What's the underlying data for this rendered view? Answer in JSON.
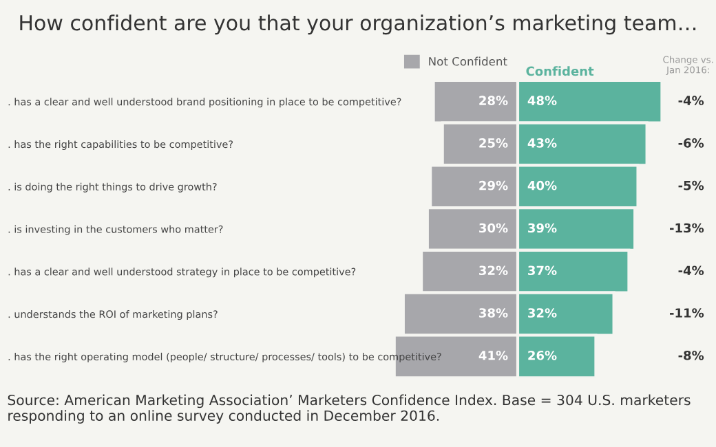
{
  "chart_data": [
    {
      "type": "bar",
      "orientation": "horizontal",
      "title": "How confident are you that your organization’s marketing team…",
      "categories": [
        ". has a clear and well understood brand positioning in place to be competitive?",
        ". has the right capabilities to be competitive?",
        ". is doing the right things to drive growth?",
        ". is investing in the customers who matter?",
        ". has a clear and well understood strategy in place to be competitive?",
        ". understands the ROI of marketing plans?",
        ". has the right operating model (people/ structure/ processes/ tools) to be competitive?"
      ],
      "series": [
        {
          "name": "Not Confident",
          "color": "#a7a7ab",
          "values": [
            28,
            25,
            29,
            30,
            32,
            38,
            41
          ],
          "value_labels": [
            "28%",
            "25%",
            "29%",
            "30%",
            "32%",
            "38%",
            "41%"
          ]
        }
      ],
      "xlim": [
        172,
        0
      ],
      "tick_labels": "y",
      "legend": "top",
      "annotations": [
        "Source: American Marketing Association’ Marketers Confidence Index. Base = 304 U.S. marketers responding to an online survey conducted in December 2016."
      ]
    },
    {
      "type": "bar",
      "orientation": "horizontal",
      "categories": [
        null,
        null,
        null,
        null,
        null,
        null,
        null
      ],
      "series": [
        {
          "name": "Confident",
          "color": "#5bb39e",
          "values": [
            48,
            43,
            40,
            39,
            37,
            32,
            26
          ],
          "value_labels": [
            "48%",
            "43%",
            "40%",
            "39%",
            "37%",
            "32%",
            "26%"
          ]
        }
      ],
      "xlim": [
        0,
        66
      ],
      "tick_labels": false,
      "annotations": [
        "Change vs.\nJan 2016:",
        "-4%",
        "-6%",
        "-5%",
        "-13%",
        "-4%",
        "-11%",
        "-8%"
      ]
    }
  ]
}
